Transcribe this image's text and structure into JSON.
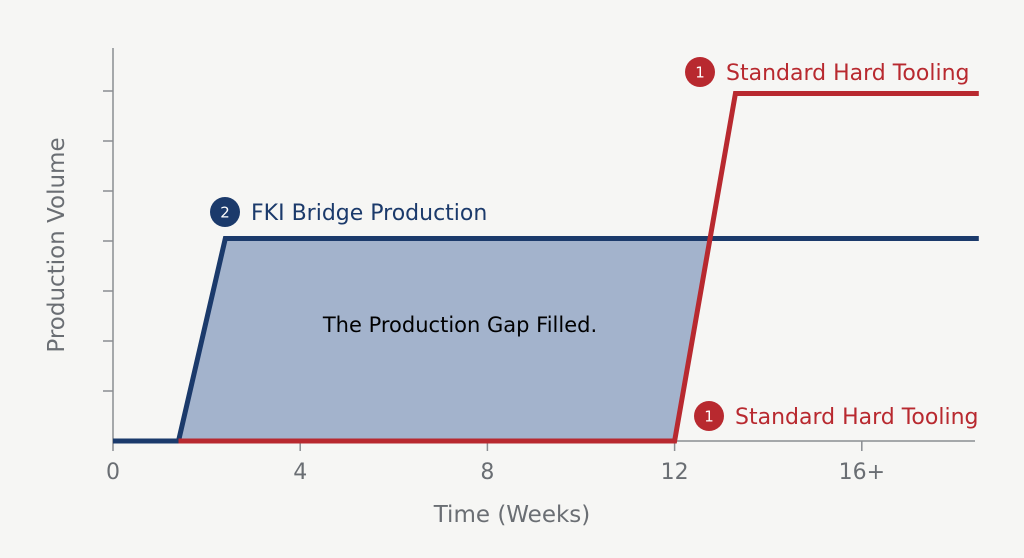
{
  "chart_data": {
    "type": "line",
    "title": "",
    "xlabel": "Time (Weeks)",
    "ylabel": "Production Volume",
    "xlim": [
      0,
      18.5
    ],
    "ylim": [
      0,
      7
    ],
    "x_ticks": [
      {
        "value": 0,
        "label": "0"
      },
      {
        "value": 4,
        "label": "4"
      },
      {
        "value": 8,
        "label": "8"
      },
      {
        "value": 12,
        "label": "12"
      },
      {
        "value": 16,
        "label": "16+"
      }
    ],
    "y_tick_count": 7,
    "grid": false,
    "series": [
      {
        "name": "FKI Bridge Production",
        "badge": "2",
        "color": "#1b3a6b",
        "points": [
          [
            0,
            0
          ],
          [
            1.4,
            0
          ],
          [
            2.4,
            4.05
          ],
          [
            18.5,
            4.05
          ]
        ]
      },
      {
        "name": "Standard Hard Tooling",
        "badge": "1",
        "color": "#b8292f",
        "points": [
          [
            1.4,
            0
          ],
          [
            12.0,
            0
          ],
          [
            13.3,
            6.95
          ],
          [
            18.5,
            6.95
          ]
        ]
      }
    ],
    "extra_labels": [
      {
        "text": "Standard Hard Tooling",
        "badge": "1",
        "color": "#b8292f",
        "anchor": "baseline-right"
      }
    ],
    "shaded_region": {
      "label": "The Production Gap Filled.",
      "fill": "#a3b3cc",
      "label_color": "#1b3a6b"
    }
  }
}
